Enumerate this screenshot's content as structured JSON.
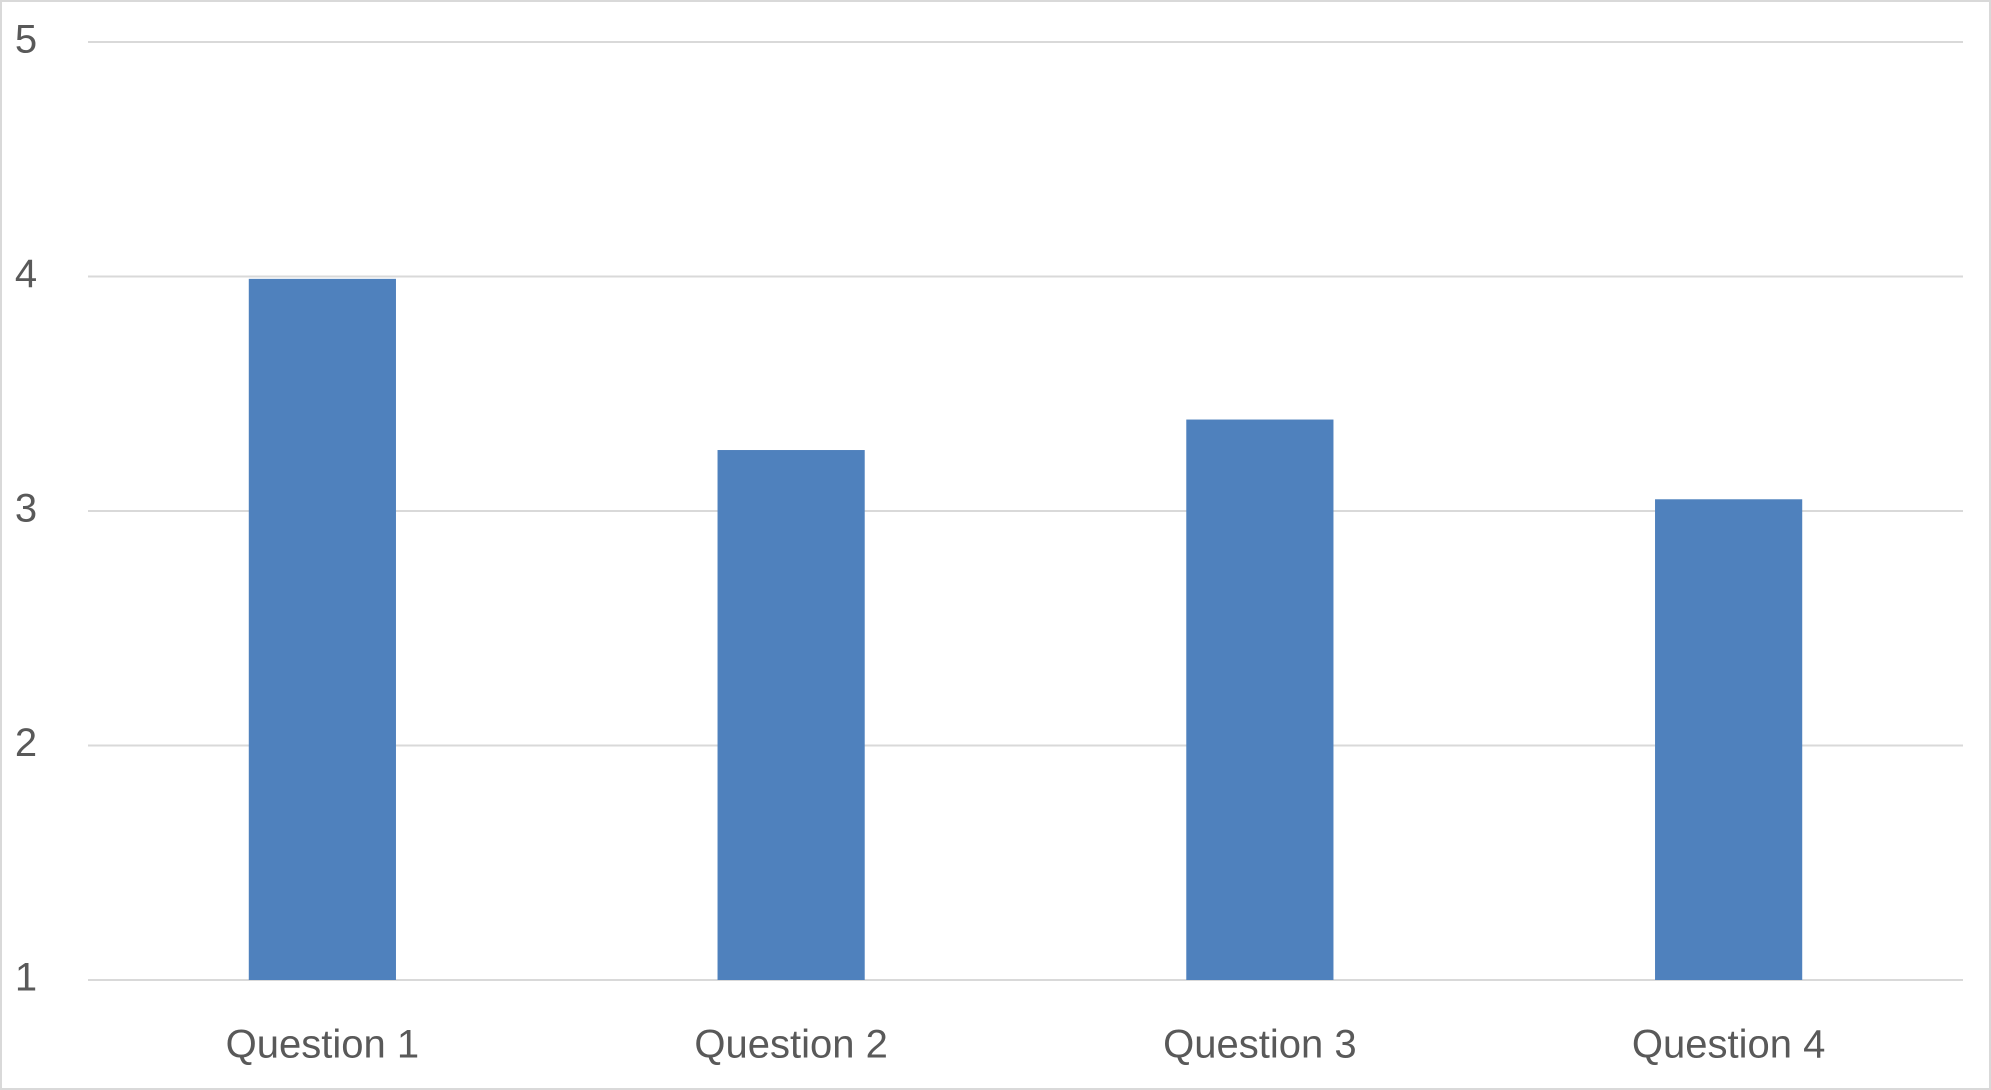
{
  "chart_data": {
    "type": "bar",
    "categories": [
      "Question 1",
      "Question 2",
      "Question 3",
      "Question 4"
    ],
    "values": [
      3.99,
      3.26,
      3.39,
      3.05
    ],
    "color": "#4f81bd",
    "ylim": [
      1,
      5
    ],
    "yticks": [
      1,
      2,
      3,
      4,
      5
    ],
    "grid": true
  }
}
